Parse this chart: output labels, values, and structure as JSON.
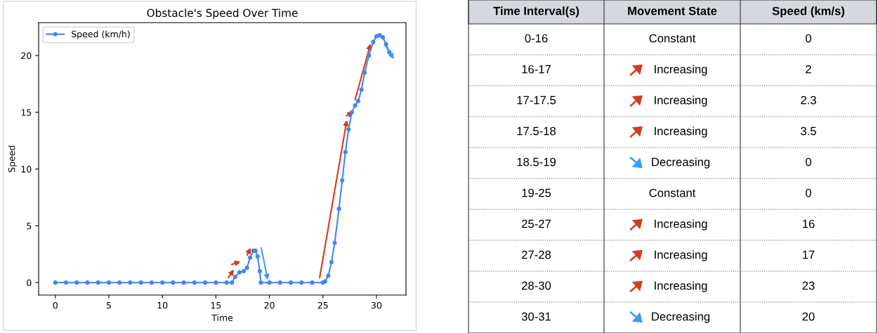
{
  "chart_data": [
    {
      "type": "line",
      "title": "Obstacle's Speed Over Time",
      "xlabel": "Time",
      "ylabel": "Speed",
      "x": [
        0,
        1,
        2,
        3,
        4,
        5,
        6,
        7,
        8,
        9,
        10,
        11,
        12,
        13,
        14,
        15,
        16,
        16.5,
        16.8,
        17.2,
        17.6,
        17.9,
        18.2,
        18.5,
        18.7,
        18.9,
        19.1,
        19.2,
        20,
        21,
        22,
        23,
        24,
        25,
        25.2,
        25.5,
        25.8,
        26.1,
        26.5,
        26.8,
        27.1,
        27.4,
        27.7,
        28.0,
        28.3,
        28.6,
        28.9,
        29.3,
        29.7,
        30.0,
        30.3,
        30.6,
        30.9,
        31.2
      ],
      "series": [
        {
          "name": "Speed (km/h)",
          "color": "#4285f4",
          "values": [
            0,
            0,
            0,
            0,
            0,
            0,
            0,
            0,
            0,
            0,
            0,
            0,
            0,
            0,
            0,
            0,
            0,
            0,
            0.5,
            0.9,
            1.0,
            1.3,
            2.2,
            2.8,
            2.8,
            2.3,
            1.0,
            0,
            0,
            0,
            0,
            0,
            0,
            0,
            0.1,
            0.6,
            1.8,
            3.5,
            6.5,
            9,
            11.5,
            13.5,
            15,
            15.6,
            16,
            17,
            18.5,
            20,
            21.2,
            21.7,
            21.8,
            21.6,
            21,
            20.3
          ]
        }
      ],
      "xlim": [
        -1.56,
        32.76
      ],
      "ylim": [
        -1.1,
        22.9
      ],
      "xticks": [
        0,
        5,
        10,
        15,
        20,
        25,
        30
      ],
      "yticks": [
        0,
        5,
        10,
        15,
        20
      ],
      "marker": "circle",
      "line_style": "solid",
      "legend": "top left",
      "grid": false
    },
    {
      "type": "other",
      "categories": [
        "Time Interval(s)",
        "Movement State",
        "Speed (km/s)"
      ],
      "cell_labels": [
        [
          "0-16",
          "Constant",
          "0"
        ],
        [
          "16-17",
          "Increasing",
          "2"
        ],
        [
          "17-17.5",
          "Increasing",
          "2.3"
        ],
        [
          "17.5-18",
          "Increasing",
          "3.5"
        ],
        [
          "18.5-19",
          "Decreasing",
          "0"
        ],
        [
          "19-25",
          "Constant",
          "0"
        ],
        [
          "25-27",
          "Increasing",
          "16"
        ],
        [
          "27-28",
          "Increasing",
          "17"
        ],
        [
          "28-30",
          "Increasing",
          "23"
        ],
        [
          "30-31",
          "Decreasing",
          "20"
        ]
      ]
    }
  ]
}
